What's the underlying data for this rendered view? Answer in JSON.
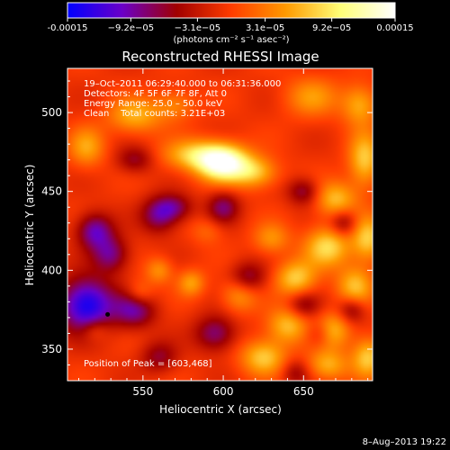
{
  "colorbar": {
    "ticks": [
      "-0.00015",
      "−9.2e−05",
      "−3.1e−05",
      "3.1e−05",
      "9.2e−05",
      "0.00015"
    ],
    "tick_values": [
      -0.00015,
      -9.2e-05,
      -3.1e-05,
      3.1e-05,
      9.2e-05,
      0.00015
    ],
    "label": "(photons cm⁻² s⁻¹ asec⁻²)",
    "colors": [
      "#0000ff",
      "#6a00c8",
      "#a10000",
      "#ff3c00",
      "#ff9a00",
      "#ffff78",
      "#ffffff"
    ]
  },
  "chart_data": {
    "type": "heatmap",
    "title": "Reconstructed RHESSI Image",
    "xlabel": "Heliocentric X (arcsec)",
    "ylabel": "Heliocentric Y (arcsec)",
    "xlim": [
      503,
      693
    ],
    "ylim": [
      330,
      528
    ],
    "xticks": [
      550,
      600,
      650
    ],
    "yticks": [
      350,
      400,
      450,
      500
    ],
    "value_range": [
      -0.00015,
      0.00015
    ],
    "annotations": [
      "19–Oct–2011 06:29:40.000 to 06:31:36.000",
      "Detectors: 4F 5F 6F 7F 8F, Att 0",
      "Energy Range: 25.0 – 50.0 keV",
      "Clean    Total counts: 3.21E+03"
    ],
    "peak_label": "Position of Peak = [603,468]",
    "peak": [
      603,
      468
    ],
    "marker_point": [
      528,
      372
    ],
    "sources": [
      {
        "x": 600,
        "y": 468,
        "amp": 1.0,
        "sx": 11,
        "sy": 8
      },
      {
        "x": 583,
        "y": 473,
        "amp": 0.55,
        "sx": 14,
        "sy": 7
      },
      {
        "x": 620,
        "y": 462,
        "amp": 0.5,
        "sx": 10,
        "sy": 7
      },
      {
        "x": 545,
        "y": 498,
        "amp": 0.45,
        "sx": 12,
        "sy": 8
      },
      {
        "x": 515,
        "y": 478,
        "amp": 0.4,
        "sx": 8,
        "sy": 9
      },
      {
        "x": 570,
        "y": 505,
        "amp": 0.3,
        "sx": 9,
        "sy": 7
      },
      {
        "x": 655,
        "y": 510,
        "amp": 0.35,
        "sx": 12,
        "sy": 9
      },
      {
        "x": 685,
        "y": 505,
        "amp": 0.45,
        "sx": 8,
        "sy": 9
      },
      {
        "x": 688,
        "y": 470,
        "amp": 0.55,
        "sx": 7,
        "sy": 12
      },
      {
        "x": 670,
        "y": 445,
        "amp": 0.5,
        "sx": 9,
        "sy": 8
      },
      {
        "x": 665,
        "y": 415,
        "amp": 0.6,
        "sx": 10,
        "sy": 9
      },
      {
        "x": 690,
        "y": 420,
        "amp": 0.55,
        "sx": 7,
        "sy": 10
      },
      {
        "x": 645,
        "y": 395,
        "amp": 0.55,
        "sx": 9,
        "sy": 8
      },
      {
        "x": 682,
        "y": 390,
        "amp": 0.5,
        "sx": 8,
        "sy": 9
      },
      {
        "x": 640,
        "y": 365,
        "amp": 0.5,
        "sx": 9,
        "sy": 8
      },
      {
        "x": 668,
        "y": 362,
        "amp": 0.5,
        "sx": 8,
        "sy": 8
      },
      {
        "x": 625,
        "y": 345,
        "amp": 0.55,
        "sx": 10,
        "sy": 8
      },
      {
        "x": 665,
        "y": 340,
        "amp": 0.45,
        "sx": 9,
        "sy": 7
      },
      {
        "x": 690,
        "y": 345,
        "amp": 0.55,
        "sx": 7,
        "sy": 9
      },
      {
        "x": 610,
        "y": 385,
        "amp": 0.4,
        "sx": 8,
        "sy": 8
      },
      {
        "x": 560,
        "y": 400,
        "amp": 0.35,
        "sx": 6,
        "sy": 6
      },
      {
        "x": 580,
        "y": 392,
        "amp": 0.4,
        "sx": 6,
        "sy": 6
      },
      {
        "x": 548,
        "y": 385,
        "amp": 0.3,
        "sx": 6,
        "sy": 6
      },
      {
        "x": 520,
        "y": 362,
        "amp": 0.25,
        "sx": 6,
        "sy": 5
      },
      {
        "x": 590,
        "y": 425,
        "amp": 0.2,
        "sx": 7,
        "sy": 6
      },
      {
        "x": 630,
        "y": 420,
        "amp": 0.35,
        "sx": 8,
        "sy": 7
      },
      {
        "x": 520,
        "y": 425,
        "amp": -0.6,
        "sx": 8,
        "sy": 8
      },
      {
        "x": 515,
        "y": 378,
        "amp": -0.9,
        "sx": 12,
        "sy": 12
      },
      {
        "x": 545,
        "y": 375,
        "amp": -0.55,
        "sx": 9,
        "sy": 8
      },
      {
        "x": 530,
        "y": 410,
        "amp": -0.5,
        "sx": 8,
        "sy": 8
      },
      {
        "x": 560,
        "y": 435,
        "amp": -0.5,
        "sx": 8,
        "sy": 8
      },
      {
        "x": 570,
        "y": 440,
        "amp": -0.4,
        "sx": 8,
        "sy": 6
      },
      {
        "x": 600,
        "y": 440,
        "amp": -0.45,
        "sx": 7,
        "sy": 7
      },
      {
        "x": 615,
        "y": 395,
        "amp": -0.45,
        "sx": 8,
        "sy": 7
      },
      {
        "x": 595,
        "y": 360,
        "amp": -0.5,
        "sx": 9,
        "sy": 8
      },
      {
        "x": 560,
        "y": 345,
        "amp": -0.35,
        "sx": 8,
        "sy": 7
      },
      {
        "x": 650,
        "y": 378,
        "amp": -0.35,
        "sx": 7,
        "sy": 6
      },
      {
        "x": 680,
        "y": 375,
        "amp": -0.4,
        "sx": 6,
        "sy": 6
      },
      {
        "x": 660,
        "y": 360,
        "amp": -0.3,
        "sx": 6,
        "sy": 6
      },
      {
        "x": 645,
        "y": 335,
        "amp": -0.3,
        "sx": 6,
        "sy": 6
      },
      {
        "x": 675,
        "y": 430,
        "amp": -0.4,
        "sx": 6,
        "sy": 6
      },
      {
        "x": 650,
        "y": 450,
        "amp": -0.4,
        "sx": 7,
        "sy": 6
      },
      {
        "x": 545,
        "y": 470,
        "amp": -0.35,
        "sx": 8,
        "sy": 6
      }
    ]
  },
  "footer": {
    "date": "8–Aug–2013 19:22"
  }
}
